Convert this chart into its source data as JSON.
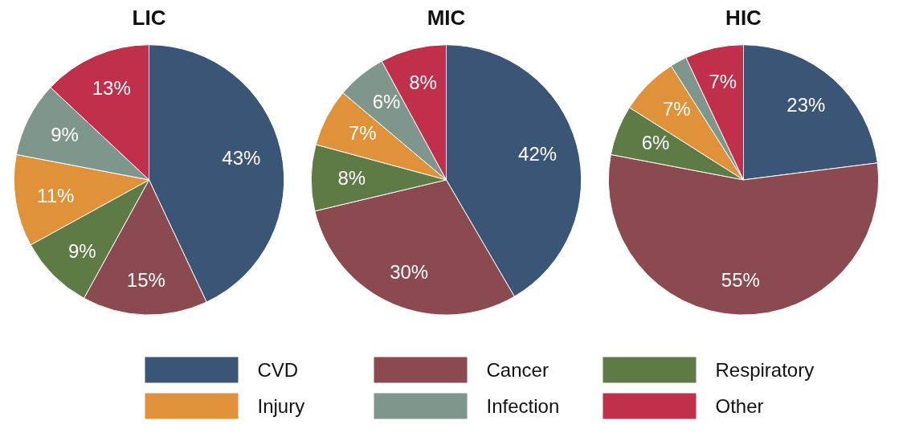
{
  "chart_data": [
    {
      "type": "pie",
      "title": "LIC",
      "categories": [
        "CVD",
        "Cancer",
        "Respiratory",
        "Injury",
        "Infection",
        "Other"
      ],
      "values": [
        43,
        15,
        9,
        11,
        9,
        13
      ],
      "colors": [
        "#3b5577",
        "#8b4a50",
        "#5e7a45",
        "#e0923a",
        "#7f968c",
        "#c0304a"
      ],
      "value_labels": [
        "43%",
        "15%",
        "9%",
        "11%",
        "9%",
        "13%"
      ],
      "legend": "bottom"
    },
    {
      "type": "pie",
      "title": "MIC",
      "categories": [
        null,
        null,
        null,
        null,
        null,
        null
      ],
      "values": [
        42,
        30,
        8,
        7,
        6,
        8
      ],
      "colors": [
        "#3b5577",
        "#8b4a50",
        "#5e7a45",
        "#e0923a",
        "#7f968c",
        "#c0304a"
      ],
      "value_labels": [
        "42%",
        "30%",
        "8%",
        "7%",
        "6%",
        "8%"
      ]
    },
    {
      "type": "pie",
      "title": "HIC",
      "categories": [
        null,
        null,
        null,
        null,
        null,
        null
      ],
      "values": [
        23,
        55,
        6,
        7,
        2,
        7
      ],
      "colors": [
        "#3b5577",
        "#8b4a50",
        "#5e7a45",
        "#e0923a",
        "#7f968c",
        "#c0304a"
      ],
      "value_labels": [
        "23%",
        "55%",
        "6%",
        "7%",
        null,
        "7%"
      ]
    }
  ]
}
